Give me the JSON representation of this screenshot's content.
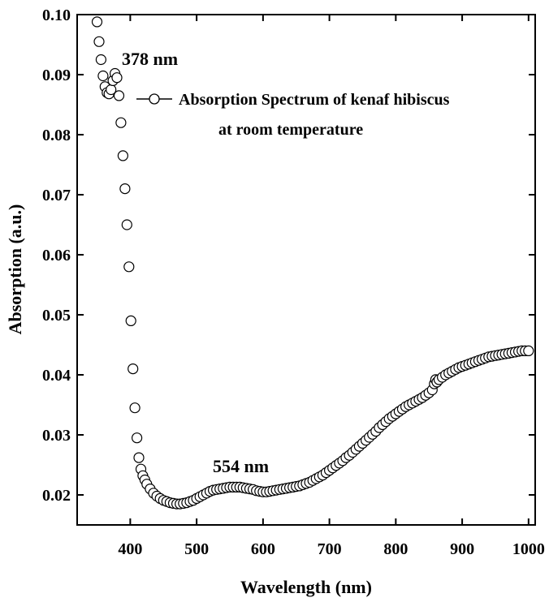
{
  "chart_data": {
    "type": "scatter",
    "xlabel": "Wavelength (nm)",
    "ylabel": "Absorption (a.u.)",
    "xlim": [
      320,
      1010
    ],
    "ylim": [
      0.015,
      0.1
    ],
    "x_ticks": [
      400,
      500,
      600,
      700,
      800,
      900,
      1000
    ],
    "x_tick_labels": [
      "400",
      "500",
      "600",
      "700",
      "800",
      "900",
      "1000"
    ],
    "y_ticks": [
      0.02,
      0.03,
      0.04,
      0.05,
      0.06,
      0.07,
      0.08,
      0.09,
      0.1
    ],
    "y_tick_labels": [
      "0.02",
      "0.03",
      "0.04",
      "0.05",
      "0.06",
      "0.07",
      "0.08",
      "0.09",
      "0.10"
    ],
    "legend": {
      "position": "top-right",
      "label_line1": "Absorption Spectrum of kenaf hibiscus",
      "label_line2": "at room temperature"
    },
    "annotations": [
      {
        "text": "378 nm",
        "x": 378,
        "y": 0.0905
      },
      {
        "text": "554 nm",
        "x": 554,
        "y": 0.0208
      }
    ],
    "marker": "open-circle",
    "series": [
      {
        "name": "Absorption Spectrum of kenaf hibiscus at room temperature",
        "x": [
          350,
          353,
          356,
          359,
          362,
          365,
          368,
          371,
          374,
          377,
          380,
          383,
          386,
          389,
          392,
          395,
          398,
          401,
          404,
          407,
          410,
          413,
          416,
          419,
          422,
          425,
          430,
          435,
          440,
          445,
          450,
          455,
          460,
          465,
          470,
          475,
          480,
          485,
          490,
          495,
          500,
          505,
          510,
          515,
          520,
          525,
          530,
          535,
          540,
          545,
          550,
          555,
          560,
          565,
          570,
          575,
          580,
          585,
          590,
          595,
          600,
          605,
          610,
          615,
          620,
          625,
          630,
          635,
          640,
          645,
          650,
          655,
          660,
          665,
          670,
          675,
          680,
          685,
          690,
          695,
          700,
          705,
          710,
          715,
          720,
          725,
          730,
          735,
          740,
          745,
          750,
          755,
          760,
          765,
          770,
          775,
          780,
          785,
          790,
          795,
          800,
          805,
          810,
          815,
          820,
          825,
          830,
          835,
          840,
          845,
          850,
          855,
          858,
          860,
          862,
          865,
          870,
          875,
          880,
          885,
          890,
          895,
          900,
          905,
          910,
          915,
          920,
          925,
          930,
          935,
          940,
          945,
          950,
          955,
          960,
          965,
          970,
          975,
          980,
          985,
          990,
          995,
          1000
        ],
        "y": [
          0.0988,
          0.0955,
          0.0925,
          0.0898,
          0.088,
          0.087,
          0.0868,
          0.0875,
          0.089,
          0.0902,
          0.0895,
          0.0865,
          0.082,
          0.0765,
          0.071,
          0.065,
          0.058,
          0.049,
          0.041,
          0.0345,
          0.0295,
          0.0262,
          0.0243,
          0.0232,
          0.0225,
          0.0218,
          0.021,
          0.0203,
          0.0198,
          0.0194,
          0.0191,
          0.0189,
          0.0187,
          0.0186,
          0.0185,
          0.0185,
          0.0186,
          0.0187,
          0.0189,
          0.0191,
          0.0194,
          0.0197,
          0.02,
          0.0203,
          0.0206,
          0.0208,
          0.0209,
          0.021,
          0.0211,
          0.0212,
          0.0213,
          0.0213,
          0.0213,
          0.0213,
          0.0212,
          0.0211,
          0.021,
          0.0209,
          0.0207,
          0.0206,
          0.0205,
          0.0205,
          0.0206,
          0.0207,
          0.0208,
          0.0209,
          0.021,
          0.0211,
          0.0212,
          0.0213,
          0.0214,
          0.0215,
          0.0217,
          0.0219,
          0.0221,
          0.0224,
          0.0227,
          0.023,
          0.0233,
          0.0237,
          0.0241,
          0.0245,
          0.0249,
          0.0253,
          0.0257,
          0.0262,
          0.0266,
          0.0271,
          0.0276,
          0.0281,
          0.0286,
          0.0291,
          0.0296,
          0.0301,
          0.0306,
          0.0312,
          0.0317,
          0.0322,
          0.0327,
          0.0331,
          0.0335,
          0.0339,
          0.0343,
          0.0347,
          0.035,
          0.0353,
          0.0356,
          0.0359,
          0.0362,
          0.0366,
          0.037,
          0.0375,
          0.0385,
          0.0392,
          0.0388,
          0.0392,
          0.0396,
          0.04,
          0.0403,
          0.0406,
          0.0409,
          0.0412,
          0.0414,
          0.0416,
          0.0418,
          0.042,
          0.0422,
          0.0424,
          0.0426,
          0.0428,
          0.043,
          0.0431,
          0.0432,
          0.0433,
          0.0434,
          0.0435,
          0.0436,
          0.0437,
          0.0438,
          0.0439,
          0.044,
          0.044,
          0.044
        ]
      }
    ]
  }
}
